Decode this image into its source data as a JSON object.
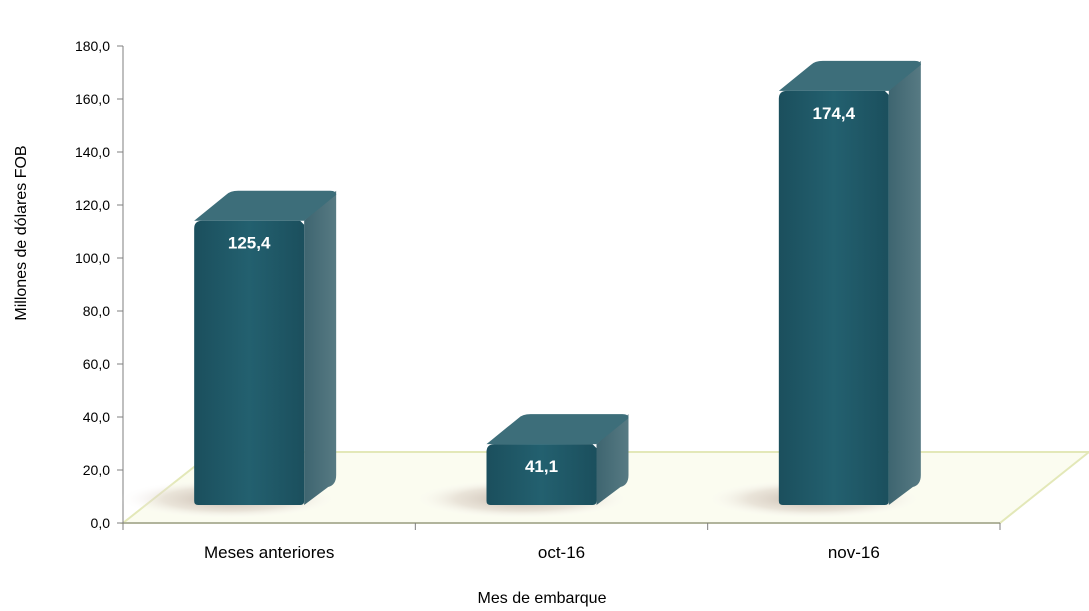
{
  "chart_data": {
    "type": "bar",
    "categories": [
      "Meses anteriores",
      "oct-16",
      "nov-16"
    ],
    "values": [
      125.4,
      41.1,
      174.4
    ],
    "value_labels": [
      "125,4",
      "41,1",
      "174,4"
    ],
    "xlabel": "Mes de embarque",
    "ylabel": "Millones de dólares FOB",
    "ylim": [
      0,
      180
    ],
    "yticks": [
      0,
      20,
      40,
      60,
      80,
      100,
      120,
      140,
      160,
      180
    ],
    "ytick_labels": [
      "0,0",
      "20,0",
      "40,0",
      "60,0",
      "80,0",
      "100,0",
      "120,0",
      "140,0",
      "160,0",
      "180,0"
    ],
    "grid": false,
    "style": "3d-column",
    "colors": {
      "bar_front": "#1f5766",
      "bar_top": "#3d6e7a",
      "bar_side": "#4a6e78",
      "floor": "#f2f4dc",
      "floor_edge": "#e3e8b8",
      "axis": "#7f7f7f"
    }
  }
}
